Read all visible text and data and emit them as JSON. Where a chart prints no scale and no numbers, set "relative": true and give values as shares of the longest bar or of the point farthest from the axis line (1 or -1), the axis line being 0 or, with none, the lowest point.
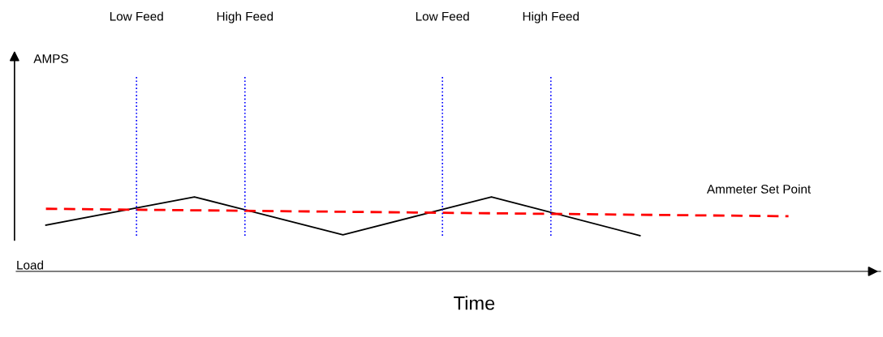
{
  "chart_data": {
    "type": "line",
    "relative": true,
    "xlabel": "Time",
    "annotations": [
      "AMPS",
      "Low Feed",
      "High Feed",
      "Low Feed",
      "High Feed"
    ],
    "categories": [
      null,
      null,
      null,
      null,
      null,
      null
    ],
    "series": [
      {
        "name": "Load",
        "color": "#000000",
        "values": [
          0.62,
          1,
          0.49,
          1,
          0.48,
          null
        ],
        "line_style": "solid"
      },
      {
        "name": "Ammeter Set Point",
        "color": "#ff0000",
        "values": [
          0.84,
          0.82,
          0.8,
          0.78,
          0.76,
          0.74
        ],
        "line_style": "dashed"
      }
    ]
  }
}
